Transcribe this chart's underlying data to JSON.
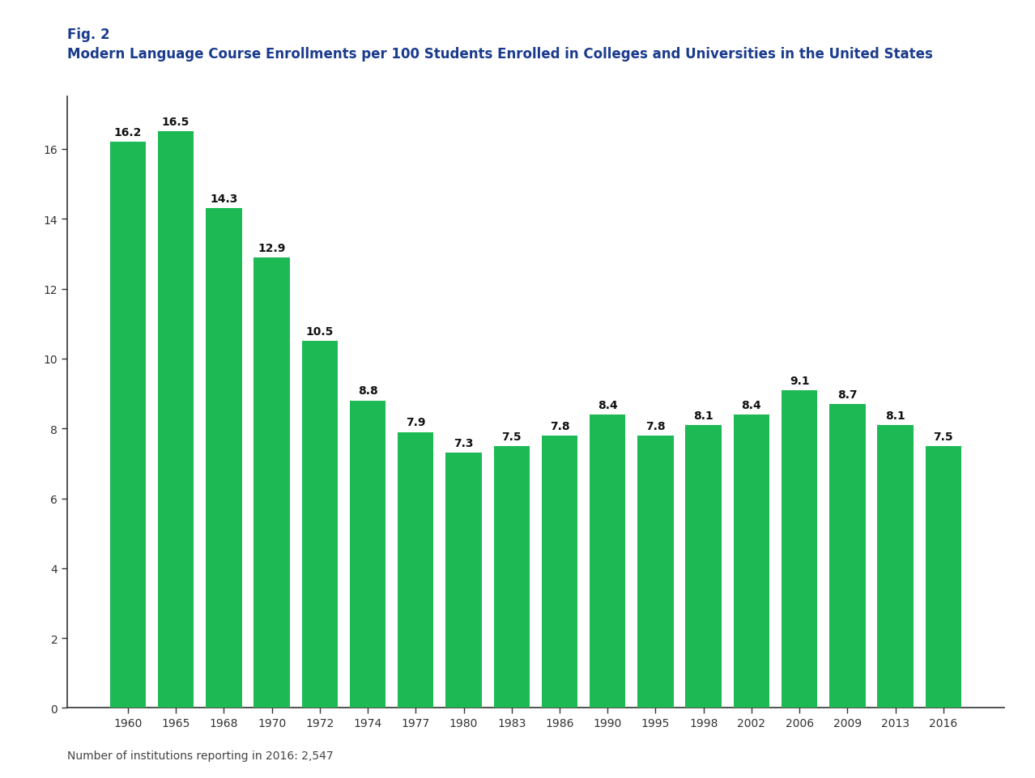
{
  "title_line1": "Fig. 2",
  "title_line2": "Modern Language Course Enrollments per 100 Students Enrolled in Colleges and Universities in the United States",
  "footnote": "Number of institutions reporting in 2016: 2,547",
  "categories": [
    "1960",
    "1965",
    "1968",
    "1970",
    "1972",
    "1974",
    "1977",
    "1980",
    "1983",
    "1986",
    "1990",
    "1995",
    "1998",
    "2002",
    "2006",
    "2009",
    "2013",
    "2016"
  ],
  "values": [
    16.2,
    16.5,
    14.3,
    12.9,
    10.5,
    8.8,
    7.9,
    7.3,
    7.5,
    7.8,
    8.4,
    7.8,
    8.1,
    8.4,
    9.1,
    8.7,
    8.1,
    7.5
  ],
  "bar_color": "#1db954",
  "title_color": "#1a3a8c",
  "footnote_color": "#444444",
  "background_color": "#ffffff",
  "ylim": [
    0,
    17.5
  ],
  "yticks": [
    0,
    2,
    4,
    6,
    8,
    10,
    12,
    14,
    16
  ],
  "title1_fontsize": 12,
  "title2_fontsize": 12,
  "label_fontsize": 10,
  "tick_fontsize": 10,
  "footnote_fontsize": 10,
  "bar_width": 0.75
}
